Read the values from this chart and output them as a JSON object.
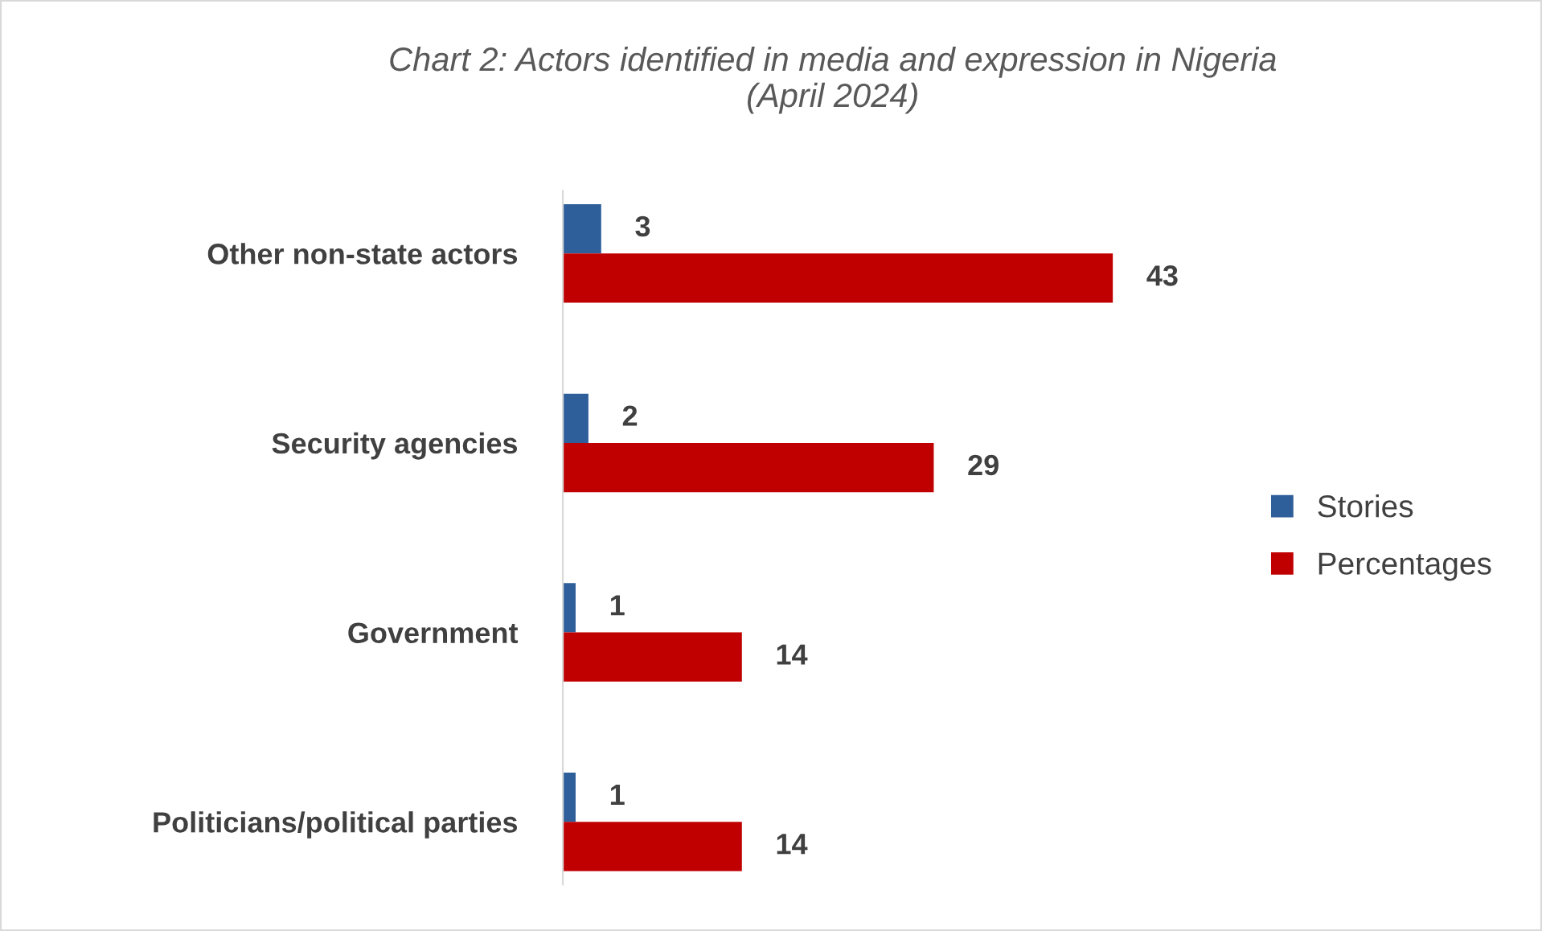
{
  "chart_data": {
    "type": "bar",
    "orientation": "horizontal",
    "title": "Chart 2: Actors identified in media and expression in Nigeria\n(April 2024)",
    "categories": [
      "Other non-state actors",
      "Security agencies",
      "Government",
      "Politicians/political parties"
    ],
    "series": [
      {
        "name": "Stories",
        "color": "#2e5f9a",
        "values": [
          3,
          2,
          1,
          1
        ]
      },
      {
        "name": "Percentages",
        "color": "#c00000",
        "values": [
          43,
          29,
          14,
          14
        ]
      }
    ],
    "data_labels": true,
    "legend": "right",
    "tick_labels": "y",
    "grid": false
  }
}
